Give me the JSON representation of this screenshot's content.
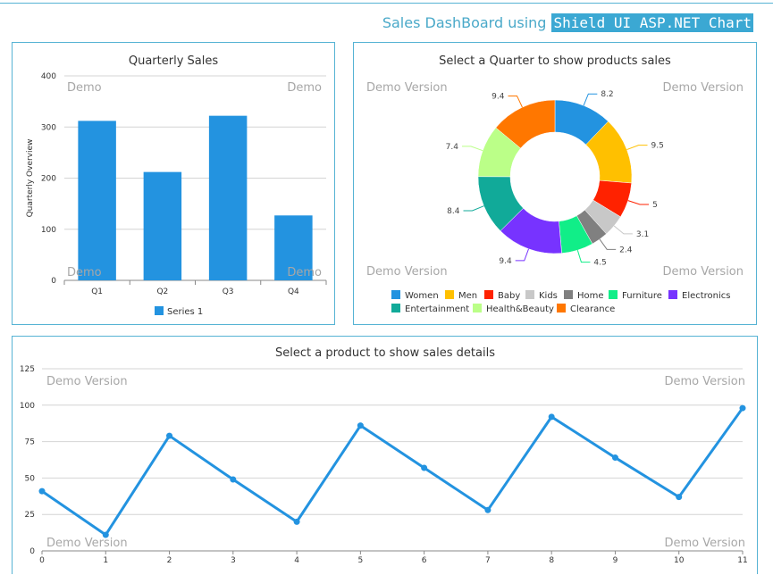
{
  "header": {
    "title_prefix": "Sales DashBoard using",
    "title_highlight": "Shield UI ASP.NET Chart"
  },
  "watermarks": {
    "short": "Demo",
    "long": "Demo Version"
  },
  "chart_data": [
    {
      "type": "bar",
      "title": "Quarterly Sales",
      "ylabel": "Quarterly Overview",
      "categories": [
        "Q1",
        "Q2",
        "Q3",
        "Q4"
      ],
      "series": [
        {
          "name": "Series 1",
          "values": [
            312,
            212,
            322,
            127
          ]
        }
      ],
      "ylim": [
        0,
        400
      ],
      "yticks": [
        0,
        100,
        200,
        300,
        400
      ],
      "grid": true,
      "legend": "bottom",
      "color": "#2393e0"
    },
    {
      "type": "pie",
      "title": "Select a Quarter to show products sales",
      "donut": true,
      "labels": [
        "Women",
        "Men",
        "Baby",
        "Kids",
        "Home",
        "Furniture",
        "Electronics",
        "Entertainment",
        "Health&Beauty",
        "Clearance"
      ],
      "values": [
        8.2,
        9.5,
        5,
        3.1,
        2.4,
        4.5,
        9.4,
        8.4,
        7.4,
        9.4
      ],
      "value_labels": [
        "8.2",
        "9.5",
        "5",
        "3.1",
        "2.4",
        "4.5",
        "9.4",
        "8.4",
        "7.4",
        "9.4"
      ],
      "colors": [
        "#2393e0",
        "#ffc000",
        "#ff2200",
        "#c8c8c8",
        "#808080",
        "#11ee88",
        "#7733ff",
        "#11aa99",
        "#bbff88",
        "#ff7700"
      ],
      "legend": "bottom"
    },
    {
      "type": "line",
      "title": "Select a product to show sales details",
      "x": [
        0,
        1,
        2,
        3,
        4,
        5,
        6,
        7,
        8,
        9,
        10,
        11
      ],
      "series": [
        {
          "values": [
            41,
            11,
            79,
            49,
            20,
            86,
            57,
            28,
            92,
            64,
            37,
            98
          ]
        }
      ],
      "ylim": [
        0,
        125
      ],
      "yticks": [
        0,
        25,
        50,
        75,
        100,
        125
      ],
      "grid": true,
      "color": "#2393e0"
    }
  ]
}
